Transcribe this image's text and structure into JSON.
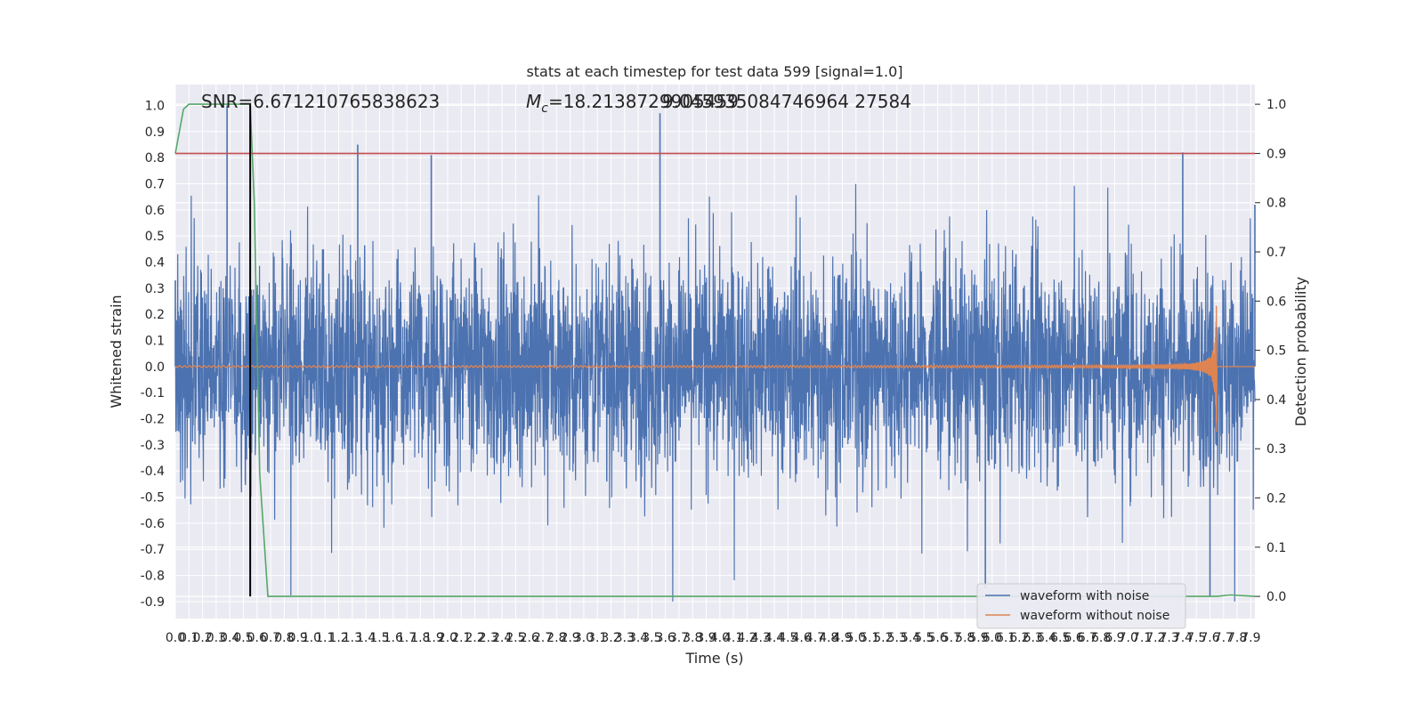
{
  "chart_data": {
    "type": "line",
    "title": "stats at each timestep for test data 599 [signal=1.0]",
    "xlabel": "Time (s)",
    "ylabel": "Whitened strain",
    "y2label": "Detection probability",
    "xlim": [
      0.0,
      7.93
    ],
    "ylim": [
      -0.965,
      1.08
    ],
    "y2lim": [
      -0.045,
      1.04
    ],
    "x_ticks": [
      "0.0",
      "0.1",
      "0.2",
      "0.3",
      "0.4",
      "0.5",
      "0.6",
      "0.7",
      "0.8",
      "0.9",
      "1.0",
      "1.1",
      "1.2",
      "1.3",
      "1.4",
      "1.5",
      "1.6",
      "1.7",
      "1.8",
      "1.9",
      "2.0",
      "2.1",
      "2.2",
      "2.3",
      "2.4",
      "2.5",
      "2.6",
      "2.7",
      "2.8",
      "2.9",
      "3.0",
      "3.1",
      "3.2",
      "3.3",
      "3.4",
      "3.5",
      "3.6",
      "3.7",
      "3.8",
      "3.9",
      "4.0",
      "4.1",
      "4.2",
      "4.3",
      "4.4",
      "4.5",
      "4.6",
      "4.7",
      "4.8",
      "4.9",
      "5.0",
      "5.1",
      "5.2",
      "5.3",
      "5.4",
      "5.5",
      "5.6",
      "5.7",
      "5.8",
      "5.9",
      "6.0",
      "6.1",
      "6.2",
      "6.3",
      "6.4",
      "6.5",
      "6.6",
      "6.7",
      "6.8",
      "6.9",
      "7.0",
      "7.1",
      "7.2",
      "7.3",
      "7.4",
      "7.5",
      "7.6",
      "7.7",
      "7.8",
      "7.9"
    ],
    "y_ticks": [
      "1.0",
      "0.9",
      "0.8",
      "0.7",
      "0.6",
      "0.5",
      "0.4",
      "0.3",
      "0.2",
      "0.1",
      "0.0",
      "-0.1",
      "-0.2",
      "-0.3",
      "-0.4",
      "-0.5",
      "-0.6",
      "-0.7",
      "-0.8",
      "-0.9"
    ],
    "y2_ticks": [
      "1.0",
      "0.9",
      "0.8",
      "0.7",
      "0.6",
      "0.5",
      "0.4",
      "0.3",
      "0.2",
      "0.1",
      "0.0"
    ],
    "annotations": {
      "snr": "SNR=6.671210765838623",
      "mc_symbol": "M",
      "mc_sub": "c",
      "mc_value": "=18.2138729905459",
      "overlap": "9.045935084746964 27584"
    },
    "series": [
      {
        "name": "waveform with noise",
        "color": "#4c72b0",
        "description_points": "dense noisy strain, envelope approx ±0.35 with spikes to ±1.0",
        "x": [
          0.0,
          0.38,
          0.55,
          1.34,
          1.88,
          3.56,
          5.95,
          7.4,
          7.6,
          7.93
        ],
        "y": [
          0.33,
          1.0,
          0.63,
          0.85,
          0.81,
          0.97,
          -0.85,
          0.82,
          -0.88,
          0.62
        ]
      },
      {
        "name": "waveform without noise",
        "color": "#dd8452",
        "chirp_end_time": 7.65,
        "chirp_peak_amplitude": 0.29
      },
      {
        "name": "detection probability",
        "color": "#55a868",
        "axis": "right",
        "x": [
          0.0,
          0.06,
          0.1,
          0.55,
          0.58,
          0.62,
          0.68,
          7.5,
          7.6,
          7.65,
          7.75,
          7.93
        ],
        "y": [
          0.9,
          0.99,
          1.0,
          1.0,
          0.8,
          0.25,
          0.0,
          0.0,
          0.0,
          0.0,
          0.003,
          0.0
        ]
      }
    ],
    "threshold": {
      "color": "#c44e52",
      "value": 0.9,
      "axis": "right"
    },
    "marker_line": {
      "color": "#000000",
      "x": 0.55
    },
    "legend": {
      "placement": "lower-right",
      "entries": [
        "waveform with noise",
        "waveform without noise"
      ]
    }
  }
}
